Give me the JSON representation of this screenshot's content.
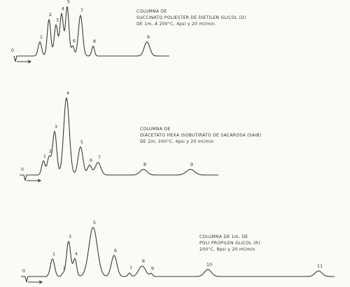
{
  "panels": [
    {
      "caption": [
        "COLUMNA DE",
        "SUCCINATO POLIESTER DE DIETILEN GLICOL (D)",
        "DE 1m, A 200°C, 4psi y 20 ml/min."
      ],
      "peaks": [
        "0",
        "1",
        "2",
        "3",
        "4",
        "5",
        "6",
        "7",
        "8",
        "9"
      ]
    },
    {
      "caption": [
        "COLUMNA DE",
        "DIACETATO HEXA ISOBUTIRATO DE SACAROSA (SAIB)",
        "DE 2m, 200°C, 4psi y 20 ml/min"
      ],
      "peaks": [
        "0",
        "1",
        "2",
        "3",
        "4",
        "5",
        "6",
        "7",
        "8",
        "9"
      ]
    },
    {
      "caption": [
        "COLUMNA DE 1m, DE",
        "POLI PROPILEN GLICOL (R)",
        "200°C, 8psi y 20 ml/min"
      ],
      "peaks": [
        "0",
        "1",
        "2",
        "3",
        "4",
        "5",
        "6",
        "7",
        "8",
        "9",
        "10",
        "11"
      ]
    }
  ]
}
